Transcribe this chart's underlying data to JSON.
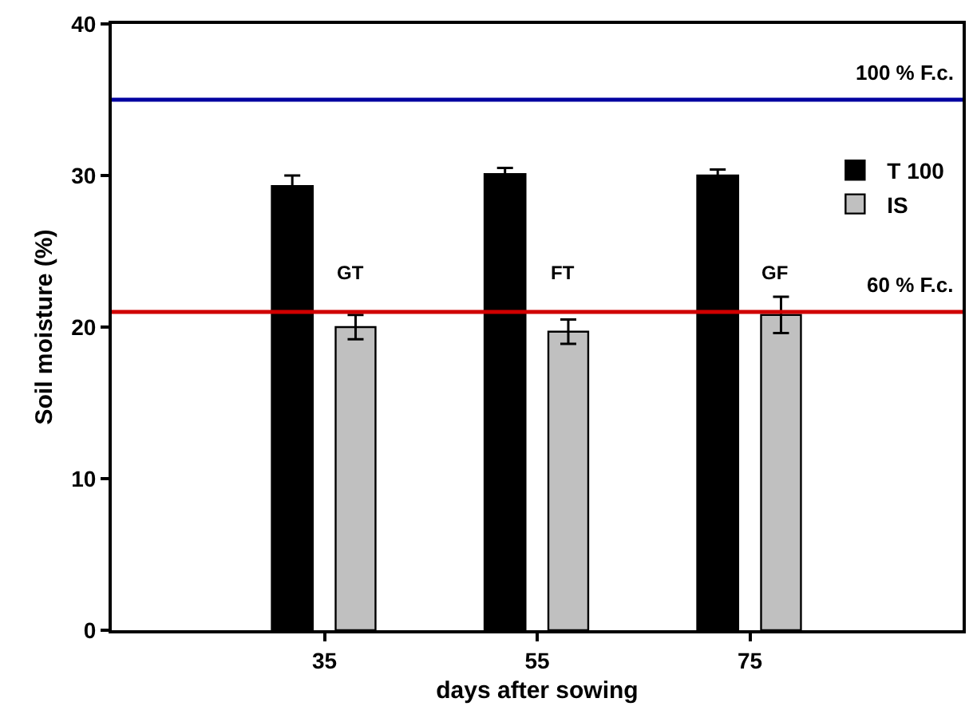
{
  "chart_data": {
    "type": "bar",
    "xlabel": "days after sowing",
    "ylabel": "Soil moisture (%)",
    "x": [
      35,
      55,
      75
    ],
    "series": [
      {
        "name": "T 100",
        "color": "#000000",
        "values": [
          29.3,
          30.1,
          30.0
        ],
        "errors": [
          0.7,
          0.4,
          0.4
        ]
      },
      {
        "name": "IS",
        "color": "#c0c0c0",
        "values": [
          20.0,
          19.7,
          20.8
        ],
        "errors": [
          0.8,
          0.8,
          1.2
        ]
      }
    ],
    "xlim": [
      15,
      95
    ],
    "xticks": [
      35,
      55,
      75
    ],
    "ylim": [
      0,
      40
    ],
    "yticks": [
      0,
      10,
      20,
      30,
      40
    ],
    "ref_lines": [
      {
        "axis": "y",
        "value": 35,
        "label": "100 % F.c.",
        "color": "#0000a0"
      },
      {
        "axis": "y",
        "value": 21,
        "label": "60 % F.c.",
        "color": "#d00000"
      }
    ],
    "annotations": [
      "GT",
      "FT",
      "GF"
    ],
    "legend": "top right"
  }
}
